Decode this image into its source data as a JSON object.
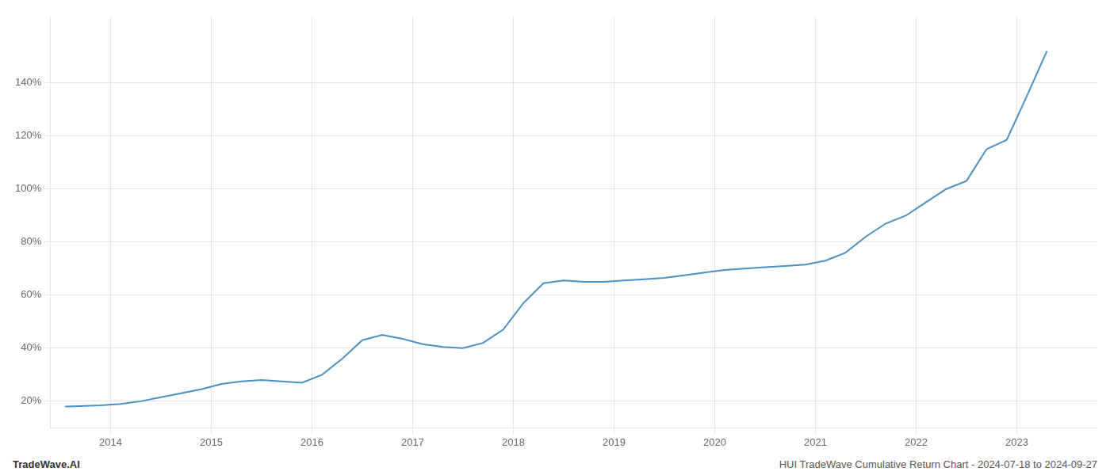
{
  "chart_data": {
    "type": "line",
    "x": [
      2013.55,
      2013.7,
      2013.9,
      2014.1,
      2014.3,
      2014.5,
      2014.7,
      2014.9,
      2015.1,
      2015.3,
      2015.5,
      2015.7,
      2015.9,
      2016.1,
      2016.3,
      2016.5,
      2016.7,
      2016.9,
      2017.1,
      2017.3,
      2017.5,
      2017.7,
      2017.9,
      2018.1,
      2018.3,
      2018.5,
      2018.7,
      2018.9,
      2019.1,
      2019.3,
      2019.5,
      2019.7,
      2019.9,
      2020.1,
      2020.3,
      2020.5,
      2020.7,
      2020.9,
      2021.1,
      2021.3,
      2021.5,
      2021.7,
      2021.9,
      2022.1,
      2022.3,
      2022.5,
      2022.7,
      2022.9,
      2023.1,
      2023.3
    ],
    "values": [
      18,
      18.2,
      18.5,
      19.0,
      20.0,
      21.5,
      23.0,
      24.5,
      26.5,
      27.5,
      28.0,
      27.5,
      27.0,
      30.0,
      36.0,
      43.0,
      45.0,
      43.5,
      41.5,
      40.5,
      40.0,
      42.0,
      47.0,
      57.0,
      64.5,
      65.5,
      65.0,
      65.0,
      65.5,
      66.0,
      66.5,
      67.5,
      68.5,
      69.5,
      70.0,
      70.5,
      71.0,
      71.5,
      73.0,
      76.0,
      82.0,
      87.0,
      90.0,
      95.0,
      100.0,
      103.0,
      115.0,
      118.5,
      135.0,
      152.0
    ],
    "color": "#4a90c4",
    "xlim": [
      2013.4,
      2023.8
    ],
    "ylim": [
      10,
      165
    ],
    "xticks": [
      2014,
      2015,
      2016,
      2017,
      2018,
      2019,
      2020,
      2021,
      2022,
      2023
    ],
    "yticks": [
      {
        "value": 20,
        "label": "20%"
      },
      {
        "value": 40,
        "label": "40%"
      },
      {
        "value": 60,
        "label": "60%"
      },
      {
        "value": 80,
        "label": "80%"
      },
      {
        "value": 100,
        "label": "100%"
      },
      {
        "value": 120,
        "label": "120%"
      },
      {
        "value": 140,
        "label": "140%"
      }
    ],
    "grid": true,
    "annotations": [
      "TradeWave.AI",
      "HUI TradeWave Cumulative Return Chart - 2024-07-18 to 2024-09-27"
    ]
  }
}
